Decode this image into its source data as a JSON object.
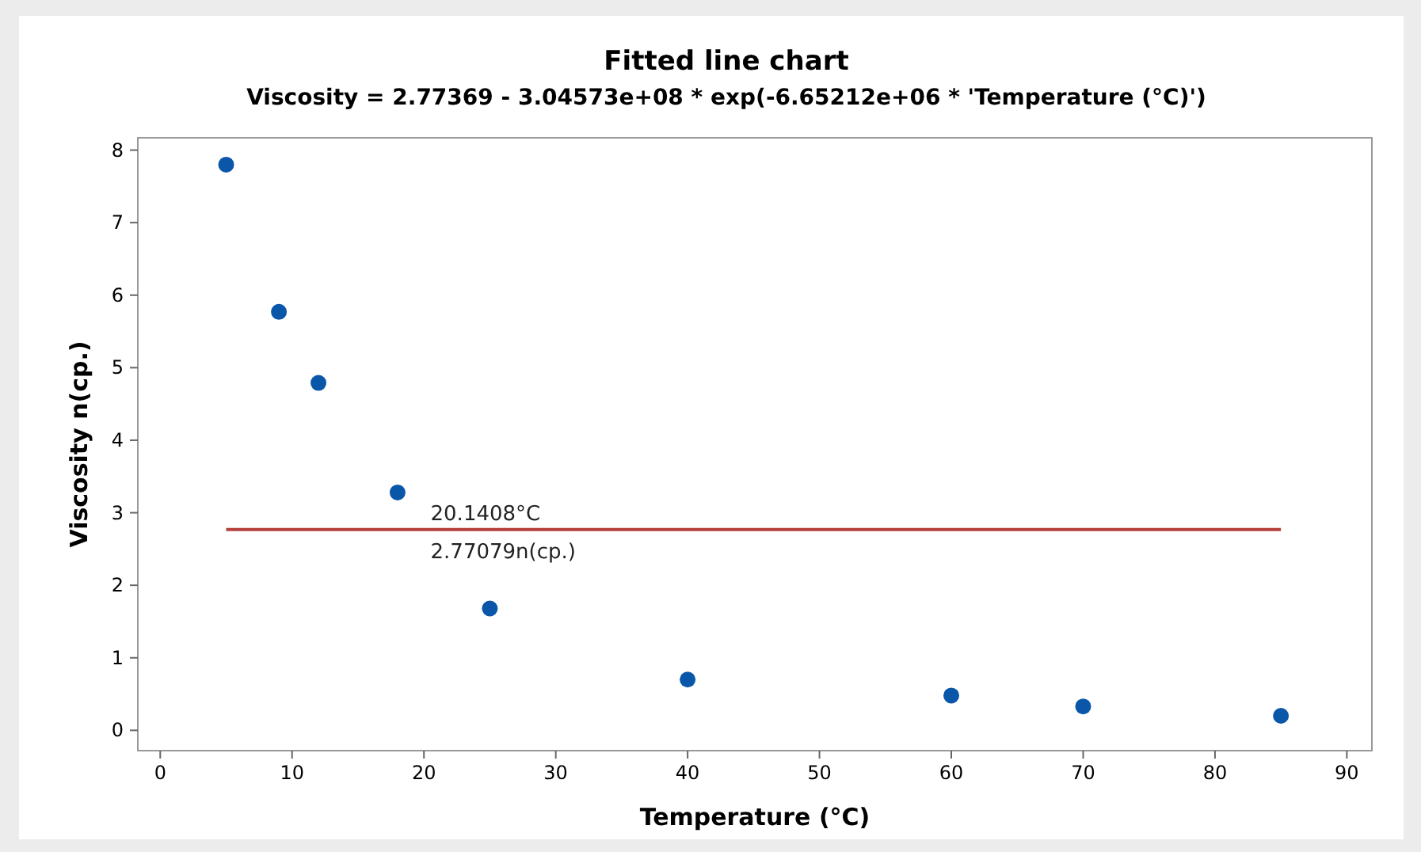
{
  "chart_data": {
    "type": "scatter",
    "title": "Fitted line chart",
    "subtitle": "Viscosity = 2.77369 - 3.04573e+08 * exp(-6.65212e+06 * 'Temperature (°C)')",
    "xlabel": "Temperature (°C)",
    "ylabel": "Viscosity n(cp.)",
    "x": [
      5,
      9,
      12,
      18,
      25,
      40,
      60,
      70,
      85
    ],
    "series": [
      {
        "color": "#0a56a8",
        "marker": "circle",
        "values": [
          7.8,
          5.77,
          4.79,
          3.28,
          1.68,
          0.7,
          0.48,
          0.33,
          0.2
        ]
      },
      {
        "type": "line",
        "color": "#b5403a",
        "line_style": "solid",
        "x": [
          5,
          85
        ],
        "values": [
          2.77,
          2.77
        ]
      }
    ],
    "xlim": [
      -1.7,
      91.9
    ],
    "xticks": [
      0,
      10,
      20,
      30,
      40,
      50,
      60,
      70,
      80,
      90
    ],
    "ylim": [
      -0.28,
      8.17
    ],
    "yticks": [
      0,
      1,
      2,
      3,
      4,
      5,
      6,
      7,
      8
    ],
    "annotations": [
      {
        "text": "20.1408°C",
        "x": 20.1408,
        "y": 2.77079
      },
      {
        "text": "2.77079n(cp.)",
        "x": 20.1408,
        "y": 2.77079
      }
    ],
    "grid": false
  }
}
